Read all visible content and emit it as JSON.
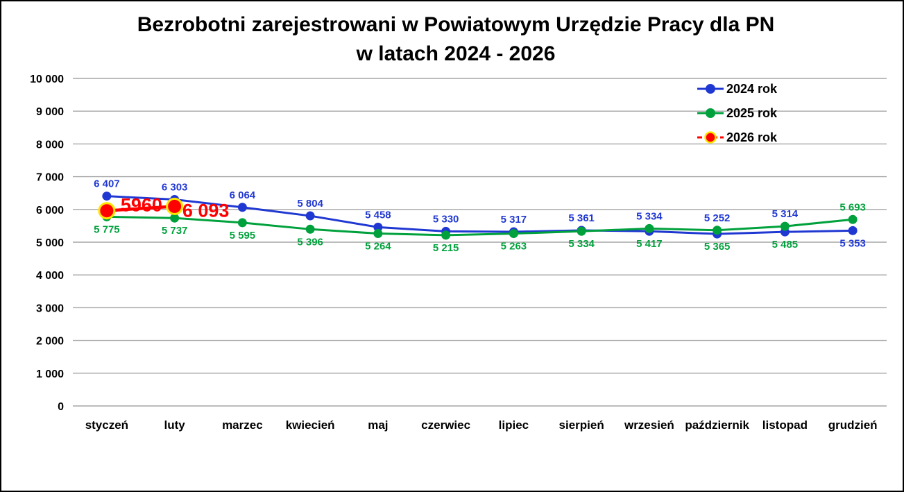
{
  "chart_data": {
    "type": "line",
    "title": "Bezrobotni zarejestrowani w Powiatowym Urzędzie Pracy dla PN",
    "subtitle": "w latach 2024 - 2026",
    "categories": [
      "styczeń",
      "luty",
      "marzec",
      "kwiecień",
      "maj",
      "czerwiec",
      "lipiec",
      "sierpień",
      "wrzesień",
      "październik",
      "listopad",
      "grudzień"
    ],
    "y_axis": {
      "min": 0,
      "max": 10000,
      "step": 1000,
      "tick_labels": [
        "0",
        "1 000",
        "2 000",
        "3 000",
        "4 000",
        "5 000",
        "6 000",
        "7 000",
        "8 000",
        "9 000",
        "10 000"
      ]
    },
    "grid": true,
    "gridline_color": "#A6A6A6",
    "legend_position": "top-right",
    "series": [
      {
        "name": "2024 rok",
        "color": "#2038D2",
        "values": [
          6407,
          6303,
          6064,
          5804,
          5458,
          5330,
          5317,
          5361,
          5334,
          5252,
          5314,
          5353
        ],
        "data_labels": [
          "6 407",
          "6 303",
          "6 064",
          "5 804",
          "5 458",
          "5 330",
          "5 317",
          "5 361",
          "5 334",
          "5 252",
          "5 314",
          "5 353"
        ],
        "label_position": "above",
        "label_overrides": {
          "11": "below"
        }
      },
      {
        "name": "2025 rok",
        "color": "#00A13C",
        "values": [
          5775,
          5737,
          5595,
          5396,
          5264,
          5215,
          5263,
          5334,
          5417,
          5365,
          5485,
          5693
        ],
        "data_labels": [
          "5 775",
          "5 737",
          "5 595",
          "5 396",
          "5 264",
          "5 215",
          "5 263",
          "5 334",
          "5 417",
          "5 365",
          "5 485",
          "5 693"
        ],
        "label_position": "below",
        "label_overrides": {
          "11": "above"
        }
      },
      {
        "name": "2026 rok",
        "color": "#FF0000",
        "marker_ring": "#FFE600",
        "values": [
          5960,
          6093,
          null,
          null,
          null,
          null,
          null,
          null,
          null,
          null,
          null,
          null
        ],
        "data_labels": [
          "5960",
          "6 093"
        ],
        "label_style": "large",
        "label_offsets": [
          [
            50,
            1
          ],
          [
            45,
            15
          ]
        ]
      }
    ]
  }
}
